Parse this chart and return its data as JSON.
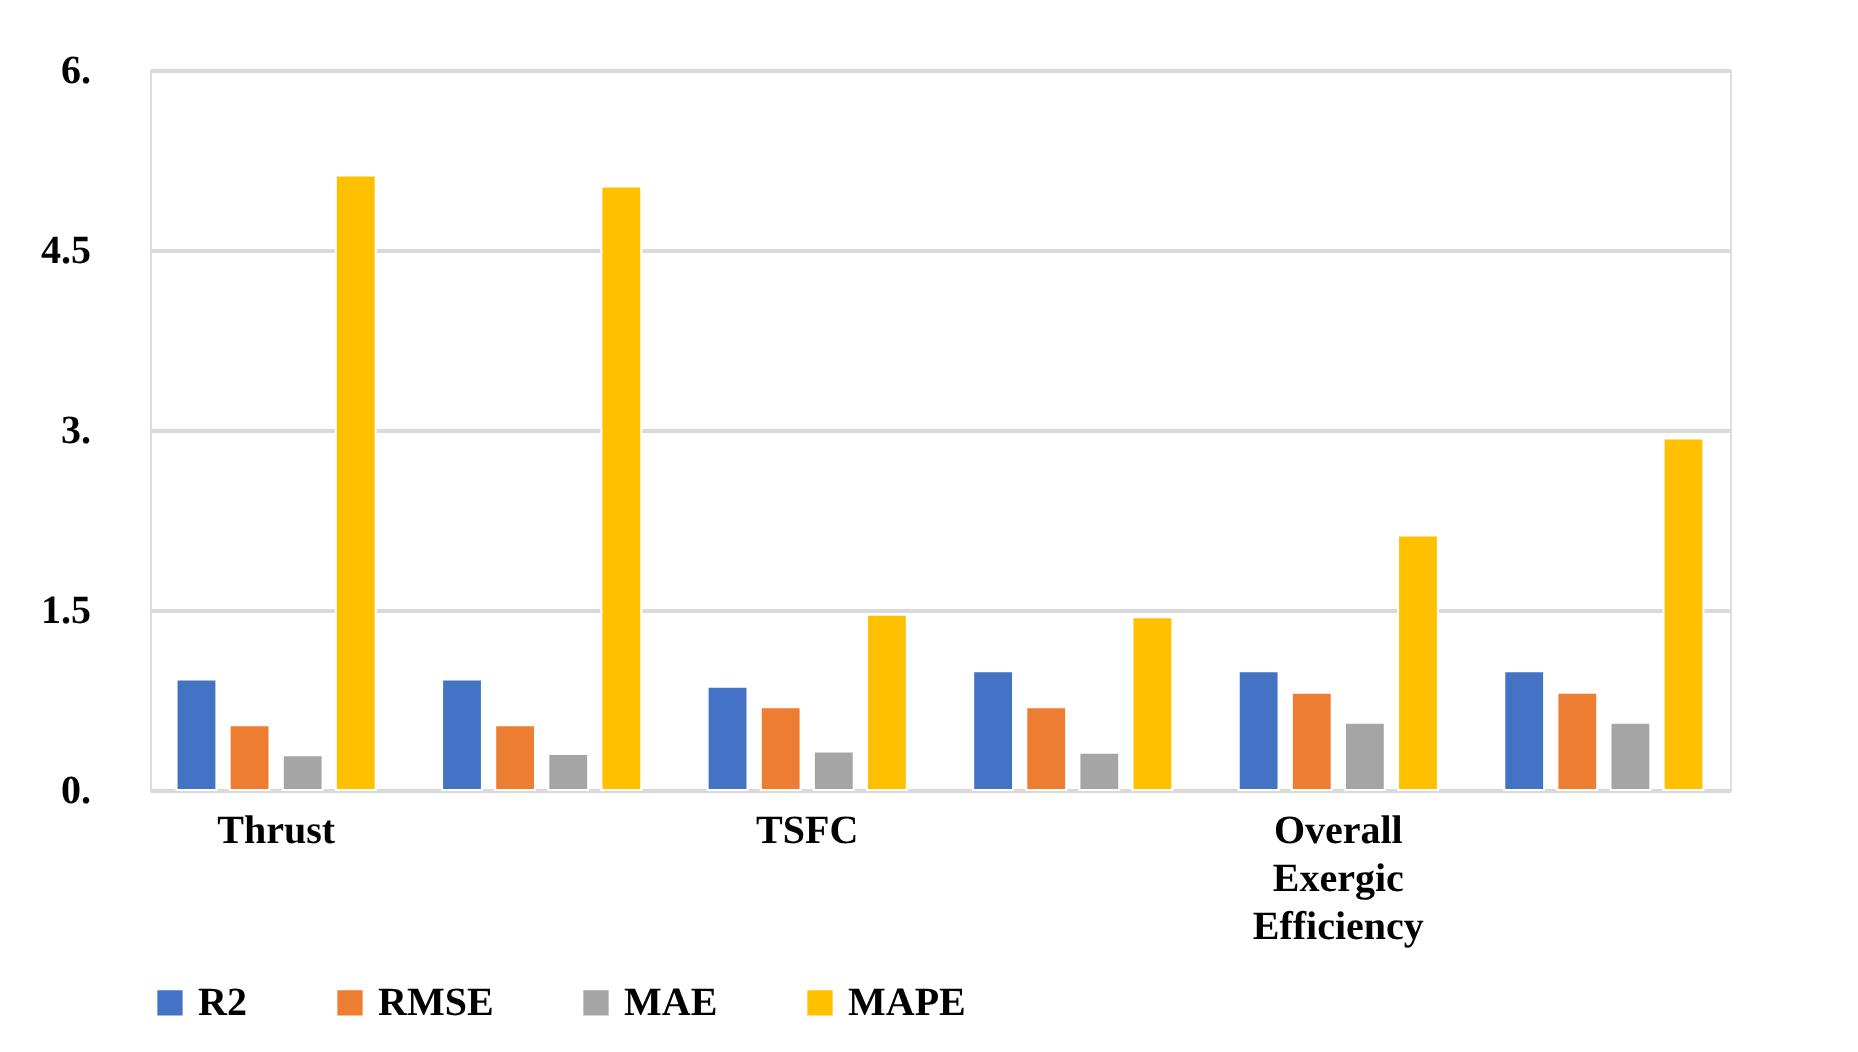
{
  "chart_data": {
    "type": "bar",
    "categories": [
      "Thrust",
      null,
      "TSFC",
      null,
      "Overall Exergic Efficiency",
      null
    ],
    "series": [
      {
        "name": "R2",
        "color": "#4472c4",
        "values": [
          0.92,
          0.92,
          0.86,
          0.99,
          0.99,
          0.99
        ]
      },
      {
        "name": "RMSE",
        "color": "#ed7d31",
        "values": [
          0.54,
          0.54,
          0.69,
          0.69,
          0.81,
          0.81
        ]
      },
      {
        "name": "MAE",
        "color": "#a5a5a5",
        "values": [
          0.29,
          0.3,
          0.32,
          0.31,
          0.56,
          0.56
        ]
      },
      {
        "name": "MAPE",
        "color": "#ffc000",
        "values": [
          5.12,
          5.03,
          1.46,
          1.44,
          2.12,
          2.93
        ]
      }
    ],
    "ylim": [
      0,
      6
    ],
    "yticks": [
      {
        "value": 0,
        "label": "0."
      },
      {
        "value": 1.5,
        "label": "1.5"
      },
      {
        "value": 3,
        "label": "3."
      },
      {
        "value": 4.5,
        "label": "4.5"
      },
      {
        "value": 6,
        "label": "6."
      }
    ],
    "grid": "y",
    "legend": "bottom"
  }
}
